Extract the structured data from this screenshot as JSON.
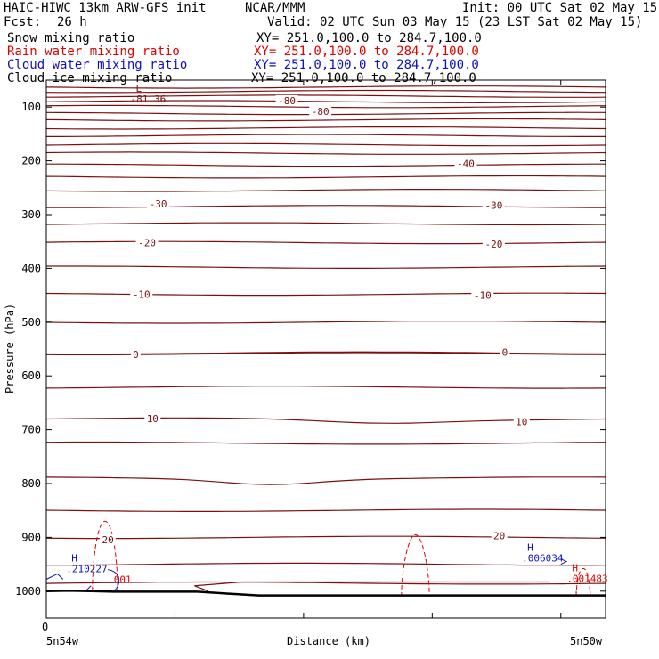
{
  "header": {
    "model": "HAIC-HIWC 13km ARW-GFS init",
    "center": "NCAR/MMM",
    "init": "Init: 00 UTC Sat 02 May 15",
    "fcst_label": "Fcst:",
    "fcst_value": "26 h",
    "valid": "Valid: 02 UTC Sun 03 May 15 (23 LST Sat 02 May 15)"
  },
  "fields": [
    {
      "label": "Snow mixing ratio",
      "xy": "XY= 251.0,100.0 to 284.7,100.0",
      "color": "#000000"
    },
    {
      "label": "Rain water mixing ratio",
      "xy": "XY= 251.0,100.0 to 284.7,100.0",
      "color": "#e00000"
    },
    {
      "label": "Cloud water mixing ratio",
      "xy": "XY= 251.0,100.0 to 284.7,100.0",
      "color": "#1010c0"
    },
    {
      "label": "Cloud ice mixing ratio",
      "xy": "XY= 251.0,100.0 to 284.7,100.0",
      "color": "#000000"
    }
  ],
  "colors": {
    "temperature": "#7a1010",
    "rain": "#e00000",
    "cloud_water": "#1010c0",
    "terrain": "#000000"
  },
  "chart_data": {
    "type": "line",
    "title": "",
    "xlabel": "Distance (km)",
    "ylabel": "Pressure (hPa)",
    "ylim": [
      1050,
      50
    ],
    "yticks": [
      100,
      200,
      300,
      400,
      500,
      600,
      700,
      800,
      900,
      1000
    ],
    "xlim": [
      0,
      100
    ],
    "xtick_label": "0",
    "x_start_label": "5n54w",
    "x_end_label": "5n50w",
    "temperature_contours_hpa": [
      63,
      71,
      80,
      90,
      99,
      112,
      124,
      139,
      153,
      170,
      186,
      208,
      230,
      255,
      285,
      317,
      352,
      398,
      448,
      500,
      558,
      621,
      680,
      725,
      790,
      850,
      900,
      950,
      985
    ],
    "temperature_labels": [
      {
        "text": "-80",
        "x": 43,
        "p": 88
      },
      {
        "text": "-80",
        "x": 49,
        "p": 108
      },
      {
        "text": "-40",
        "x": 75,
        "p": 205
      },
      {
        "text": "-30",
        "x": 20,
        "p": 280
      },
      {
        "text": "-30",
        "x": 80,
        "p": 283
      },
      {
        "text": "-20",
        "x": 18,
        "p": 352
      },
      {
        "text": "-20",
        "x": 80,
        "p": 355
      },
      {
        "text": "-10",
        "x": 17,
        "p": 448
      },
      {
        "text": "-10",
        "x": 78,
        "p": 450
      },
      {
        "text": "0",
        "x": 16,
        "p": 560
      },
      {
        "text": "0",
        "x": 82,
        "p": 556
      },
      {
        "text": "10",
        "x": 19,
        "p": 679
      },
      {
        "text": "10",
        "x": 85,
        "p": 685
      },
      {
        "text": "20",
        "x": 11,
        "p": 904
      },
      {
        "text": "20",
        "x": 81,
        "p": 897
      }
    ],
    "extremes": [
      {
        "kind": "L",
        "x": 16,
        "p": 91,
        "value": "-81.36",
        "color": "#7a1010"
      },
      {
        "kind": "H",
        "x": 4.5,
        "p": 965,
        "value": ".210227",
        "color": "#1010c0"
      },
      {
        "kind": "H",
        "x": 86,
        "p": 945,
        "value": ".006034",
        "color": "#1010c0"
      },
      {
        "kind": "H",
        "x": 94,
        "p": 983,
        "value": ".001483",
        "color": "#e00000"
      }
    ],
    "rain_value_label": ".001"
  }
}
